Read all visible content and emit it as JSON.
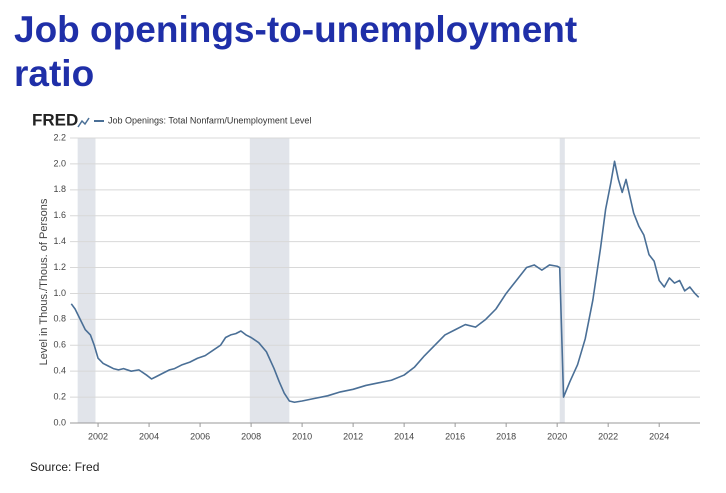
{
  "chart_data": {
    "type": "line",
    "title": "Job openings-to-unemployment ratio",
    "logo": "FRED",
    "ylabel": "Level in Thous./Thous. of Persons",
    "source": "Source: Fred",
    "x": [
      2000.95,
      2001.1,
      2001.3,
      2001.5,
      2001.7,
      2001.85,
      2002.0,
      2002.2,
      2002.4,
      2002.6,
      2002.8,
      2003.0,
      2003.3,
      2003.6,
      2003.9,
      2004.1,
      2004.3,
      2004.5,
      2004.8,
      2005.0,
      2005.3,
      2005.6,
      2005.9,
      2006.2,
      2006.5,
      2006.8,
      2007.0,
      2007.2,
      2007.4,
      2007.6,
      2007.8,
      2008.0,
      2008.3,
      2008.6,
      2008.9,
      2009.1,
      2009.3,
      2009.5,
      2009.7,
      2010.0,
      2010.5,
      2011.0,
      2011.5,
      2012.0,
      2012.5,
      2013.0,
      2013.5,
      2014.0,
      2014.4,
      2014.8,
      2015.2,
      2015.6,
      2016.0,
      2016.4,
      2016.8,
      2017.2,
      2017.6,
      2018.0,
      2018.4,
      2018.8,
      2019.1,
      2019.4,
      2019.7,
      2020.0,
      2020.1,
      2020.25,
      2020.5,
      2020.8,
      2021.1,
      2021.4,
      2021.7,
      2021.9,
      2022.1,
      2022.25,
      2022.4,
      2022.55,
      2022.7,
      2022.85,
      2023.0,
      2023.2,
      2023.4,
      2023.6,
      2023.8,
      2024.0,
      2024.2,
      2024.4,
      2024.6,
      2024.8,
      2025.0,
      2025.2,
      2025.4,
      2025.55
    ],
    "series": [
      {
        "name": "Job Openings: Total Nonfarm/Unemployment Level",
        "color": "#4a6f96",
        "values": [
          0.92,
          0.88,
          0.8,
          0.72,
          0.68,
          0.6,
          0.5,
          0.46,
          0.44,
          0.42,
          0.41,
          0.42,
          0.4,
          0.41,
          0.37,
          0.34,
          0.36,
          0.38,
          0.41,
          0.42,
          0.45,
          0.47,
          0.5,
          0.52,
          0.56,
          0.6,
          0.66,
          0.68,
          0.69,
          0.71,
          0.68,
          0.66,
          0.62,
          0.55,
          0.42,
          0.32,
          0.23,
          0.17,
          0.16,
          0.17,
          0.19,
          0.21,
          0.24,
          0.26,
          0.29,
          0.31,
          0.33,
          0.37,
          0.43,
          0.52,
          0.6,
          0.68,
          0.72,
          0.76,
          0.74,
          0.8,
          0.88,
          1.0,
          1.1,
          1.2,
          1.22,
          1.18,
          1.22,
          1.21,
          1.2,
          0.2,
          0.32,
          0.45,
          0.65,
          0.95,
          1.35,
          1.65,
          1.85,
          2.02,
          1.88,
          1.78,
          1.88,
          1.75,
          1.62,
          1.52,
          1.45,
          1.3,
          1.25,
          1.1,
          1.05,
          1.12,
          1.08,
          1.1,
          1.02,
          1.05,
          1.0,
          0.97
        ]
      }
    ],
    "recessions": [
      [
        2001.2,
        2001.9
      ],
      [
        2007.95,
        2009.5
      ],
      [
        2020.1,
        2020.3
      ]
    ],
    "xlim": [
      2000.9,
      2025.6
    ],
    "xticks": [
      2002,
      2004,
      2006,
      2008,
      2010,
      2012,
      2014,
      2016,
      2018,
      2020,
      2022,
      2024
    ],
    "ylim": [
      0,
      2.2
    ],
    "yticks": [
      {
        "value": 0,
        "label": "0.0"
      },
      0.2,
      0.4,
      0.6,
      0.8,
      {
        "value": 1,
        "label": "1.0"
      },
      1.2,
      1.4,
      1.6,
      1.8,
      {
        "value": 2,
        "label": "2.0"
      },
      2.2
    ],
    "grid": true
  }
}
